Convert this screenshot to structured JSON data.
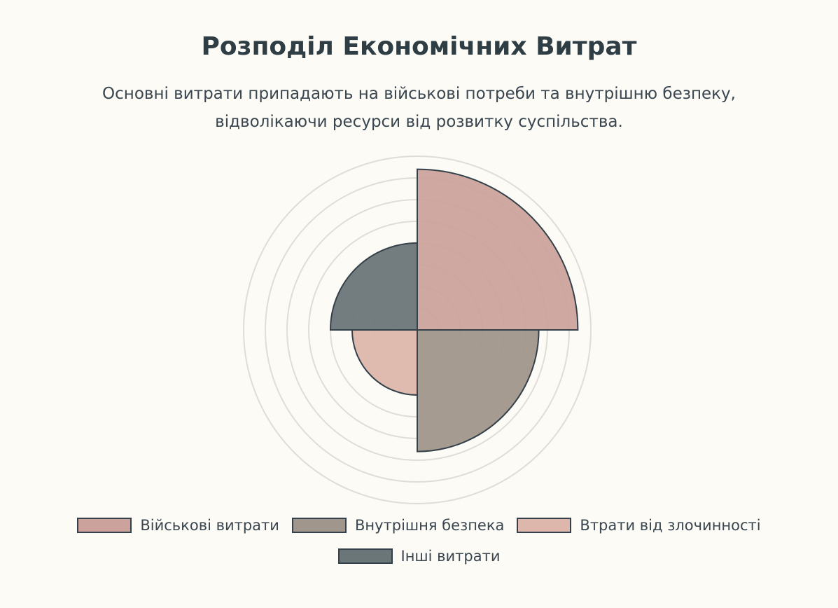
{
  "title": "Розподіл Економічних Витрат",
  "subtitle": "Основні витрати припадають на військові потреби та внутрішню безпеку, відволікаючи ресурси від розвитку суспільства.",
  "chart_data": {
    "type": "polarArea",
    "categories": [
      "Військові витрати",
      "Внутрішня безпека",
      "Втрати від злочинності",
      "Інші витрати"
    ],
    "values": [
      74,
      56,
      30,
      40
    ],
    "colors": [
      "#cba39c",
      "#a0968b",
      "#ddb7ab",
      "#6b7679"
    ],
    "rlim": [
      0,
      80
    ],
    "grid": true,
    "legend": "bottom"
  }
}
